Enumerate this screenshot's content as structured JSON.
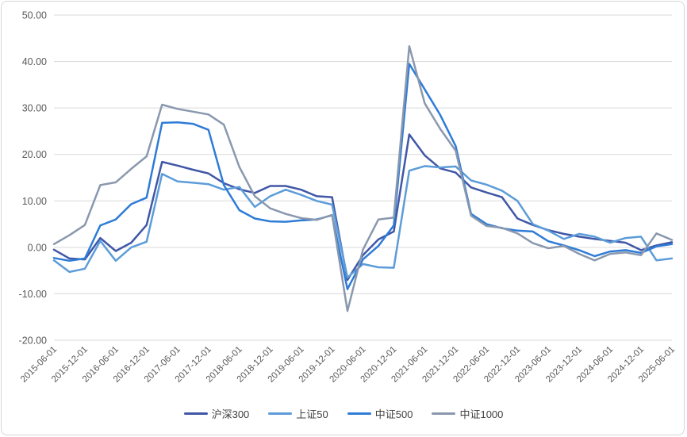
{
  "chart_title": "",
  "y_axis": {
    "tick_labels": [
      "50.00",
      "40.00",
      "30.00",
      "20.00",
      "10.00",
      "0.00",
      "-10.00",
      "-20.00"
    ],
    "min": -20,
    "max": 50,
    "step": 10
  },
  "colors": {
    "gridline": "#D9D9D9",
    "axis_text": "#595959",
    "legend_text": "#404040",
    "border": "#D6D6D6",
    "background": "#FFFFFF"
  },
  "chart_data": {
    "type": "line",
    "grid": "horizontal-only",
    "legend_position": "bottom",
    "ylim": [
      -20,
      50
    ],
    "y_ticks": [
      50,
      40,
      30,
      20,
      10,
      0,
      -10,
      -20
    ],
    "x": [
      "2015-06-01",
      "2015-09-01",
      "2015-12-01",
      "2016-03-01",
      "2016-06-01",
      "2016-09-01",
      "2016-12-01",
      "2017-03-01",
      "2017-06-01",
      "2017-09-01",
      "2017-12-01",
      "2018-03-01",
      "2018-06-01",
      "2018-09-01",
      "2018-12-01",
      "2019-03-01",
      "2019-06-01",
      "2019-09-01",
      "2019-12-01",
      "2020-03-01",
      "2020-06-01",
      "2020-09-01",
      "2020-12-01",
      "2021-03-01",
      "2021-06-01",
      "2021-09-01",
      "2021-12-01",
      "2022-03-01",
      "2022-06-01",
      "2022-09-01",
      "2022-12-01",
      "2023-03-01",
      "2023-06-01",
      "2023-09-01",
      "2023-12-01",
      "2024-03-01",
      "2024-06-01",
      "2024-09-01",
      "2024-12-01",
      "2025-03-01",
      "2025-06-01"
    ],
    "x_tick_labels": [
      "2015-06-01",
      "2015-12-01",
      "2016-06-01",
      "2016-12-01",
      "2017-06-01",
      "2017-12-01",
      "2018-06-01",
      "2018-12-01",
      "2019-06-01",
      "2019-12-01",
      "2020-06-01",
      "2020-12-01",
      "2021-06-01",
      "2021-12-01",
      "2022-06-01",
      "2022-12-01",
      "2023-06-01",
      "2023-12-01",
      "2024-06-01",
      "2024-12-01",
      "2025-06-01"
    ],
    "series": [
      {
        "name": "沪深300",
        "color": "#4057A7",
        "values": [
          -0.5,
          -2.4,
          -2.6,
          2.0,
          -0.8,
          1.0,
          4.8,
          18.4,
          17.6,
          16.7,
          15.9,
          13.8,
          12.5,
          11.7,
          13.2,
          13.2,
          12.4,
          11.0,
          10.8,
          -7.0,
          -1.7,
          1.7,
          3.4,
          24.3,
          19.8,
          17.0,
          16.1,
          12.9,
          11.8,
          10.8,
          6.2,
          4.8,
          3.7,
          2.9,
          2.3,
          1.8,
          1.4,
          1.0,
          -0.6,
          0.4,
          1.1
        ]
      },
      {
        "name": "上证50",
        "color": "#5C9CD9",
        "values": [
          -2.8,
          -5.3,
          -4.6,
          1.4,
          -2.9,
          0.0,
          1.2,
          15.8,
          14.2,
          13.9,
          13.6,
          12.4,
          13.0,
          8.7,
          11.0,
          12.4,
          11.3,
          10.0,
          9.2,
          -6.5,
          -3.6,
          -4.3,
          -4.4,
          16.5,
          17.5,
          17.2,
          17.4,
          14.4,
          13.5,
          12.2,
          10.0,
          5.0,
          3.6,
          1.8,
          2.9,
          2.3,
          1.0,
          2.0,
          2.3,
          -2.8,
          -2.4
        ]
      },
      {
        "name": "中证500",
        "color": "#2E7CD6",
        "values": [
          -2.3,
          -2.9,
          -2.4,
          4.7,
          6.0,
          9.3,
          10.7,
          26.8,
          26.9,
          26.6,
          25.3,
          13.4,
          8.0,
          6.2,
          5.6,
          5.5,
          5.8,
          6.0,
          6.9,
          -9.0,
          -2.6,
          0.3,
          4.7,
          39.5,
          34.0,
          28.5,
          21.8,
          7.2,
          5.0,
          4.1,
          3.6,
          3.4,
          1.3,
          0.4,
          -0.6,
          -1.9,
          -0.9,
          -0.6,
          -1.2,
          0.2,
          0.7
        ]
      },
      {
        "name": "中证1000",
        "color": "#8A98AE",
        "values": [
          0.7,
          2.6,
          4.8,
          13.4,
          14.0,
          16.9,
          19.6,
          30.7,
          29.8,
          29.2,
          28.6,
          26.4,
          17.3,
          11.0,
          8.4,
          7.2,
          6.3,
          5.9,
          7.0,
          -13.7,
          -0.5,
          6.0,
          6.4,
          43.3,
          31.0,
          25.5,
          20.8,
          6.8,
          4.6,
          4.2,
          3.0,
          0.9,
          -0.2,
          0.3,
          -1.4,
          -2.8,
          -1.4,
          -1.1,
          -1.7,
          3.0,
          1.6
        ]
      }
    ]
  }
}
